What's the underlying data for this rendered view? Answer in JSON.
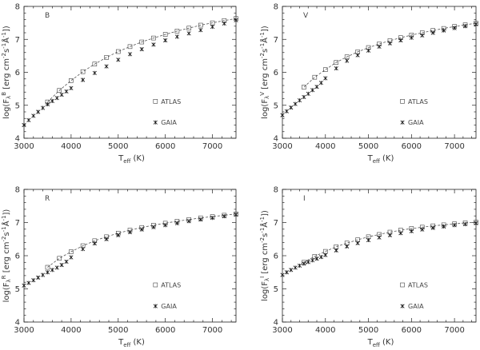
{
  "colors": {
    "axes": "#222222",
    "atlas_marker": "#444444",
    "gaia_marker": "#111111",
    "curve": "#555555"
  },
  "chart_data": [
    {
      "type": "scatter",
      "panel_label": "B",
      "ylabel": "log(F_λ^B [erg cm^-2s^-1Å^-1])",
      "ylabel_main": "log(F",
      "ylabel_sup": "B",
      "ylabel_rest": " [erg cm",
      "xlabel_main": "T",
      "xlabel_sub": "eff",
      "xlabel_unit": " (K)",
      "xlim": [
        3000,
        7500
      ],
      "ylim": [
        4,
        8
      ],
      "xticks": [
        "3000",
        "4000",
        "5000",
        "6000",
        "7000"
      ],
      "yticks": [
        "4",
        "5",
        "6",
        "7",
        "8"
      ],
      "legend": [
        "ATLAS",
        "GAIA"
      ],
      "series": [
        {
          "name": "ATLAS",
          "marker": "square",
          "x": [
            3500,
            3750,
            4000,
            4250,
            4500,
            4750,
            5000,
            5250,
            5500,
            5750,
            6000,
            6250,
            6500,
            6750,
            7000,
            7250,
            7500
          ],
          "y": [
            5.1,
            5.45,
            5.75,
            6.02,
            6.25,
            6.45,
            6.63,
            6.78,
            6.92,
            7.04,
            7.15,
            7.25,
            7.34,
            7.43,
            7.5,
            7.57,
            7.63
          ]
        },
        {
          "name": "GAIA",
          "marker": "cross",
          "x": [
            3000,
            3100,
            3200,
            3300,
            3400,
            3500,
            3600,
            3700,
            3800,
            3900,
            4000,
            4250,
            4500,
            4750,
            5000,
            5250,
            5500,
            5750,
            6000,
            6250,
            6500,
            6750,
            7000,
            7250,
            7500
          ],
          "y": [
            4.4,
            4.55,
            4.68,
            4.8,
            4.92,
            5.03,
            5.13,
            5.22,
            5.32,
            5.42,
            5.52,
            5.77,
            5.98,
            6.18,
            6.38,
            6.55,
            6.7,
            6.84,
            6.97,
            7.08,
            7.18,
            7.28,
            7.38,
            7.48,
            7.58
          ]
        }
      ]
    },
    {
      "type": "scatter",
      "panel_label": "V",
      "ylabel": "log(F_λ^V [erg cm^-2s^-1Å^-1])",
      "ylabel_main": "log(F",
      "ylabel_sup": "V",
      "ylabel_rest": " [erg cm",
      "xlabel_main": "T",
      "xlabel_sub": "eff",
      "xlabel_unit": " (K)",
      "xlim": [
        3000,
        7500
      ],
      "ylim": [
        4,
        8
      ],
      "xticks": [
        "3000",
        "4000",
        "5000",
        "6000",
        "7000"
      ],
      "yticks": [
        "4",
        "5",
        "6",
        "7",
        "8"
      ],
      "legend": [
        "ATLAS",
        "GAIA"
      ],
      "series": [
        {
          "name": "ATLAS",
          "marker": "square",
          "x": [
            3500,
            3750,
            4000,
            4250,
            4500,
            4750,
            5000,
            5250,
            5500,
            5750,
            6000,
            6250,
            6500,
            6750,
            7000,
            7250,
            7500
          ],
          "y": [
            5.55,
            5.85,
            6.08,
            6.3,
            6.47,
            6.62,
            6.75,
            6.86,
            6.96,
            7.05,
            7.13,
            7.2,
            7.27,
            7.33,
            7.39,
            7.44,
            7.49
          ]
        },
        {
          "name": "GAIA",
          "marker": "cross",
          "x": [
            3000,
            3100,
            3200,
            3300,
            3400,
            3500,
            3600,
            3700,
            3800,
            3900,
            4000,
            4250,
            4500,
            4750,
            5000,
            5250,
            5500,
            5750,
            6000,
            6250,
            6500,
            6750,
            7000,
            7250,
            7500
          ],
          "y": [
            4.7,
            4.82,
            4.93,
            5.04,
            5.15,
            5.25,
            5.35,
            5.46,
            5.56,
            5.68,
            5.82,
            6.12,
            6.35,
            6.52,
            6.66,
            6.78,
            6.88,
            6.97,
            7.05,
            7.12,
            7.2,
            7.27,
            7.34,
            7.4,
            7.46
          ]
        }
      ]
    },
    {
      "type": "scatter",
      "panel_label": "R",
      "ylabel": "log(F_λ^R [erg cm^-2s^-1Å^-1])",
      "ylabel_main": "log(F",
      "ylabel_sup": "R",
      "ylabel_rest": " [erg cm",
      "xlabel_main": "T",
      "xlabel_sub": "eff",
      "xlabel_unit": " (K)",
      "xlim": [
        3000,
        7500
      ],
      "ylim": [
        4,
        8
      ],
      "xticks": [
        "3000",
        "4000",
        "5000",
        "6000",
        "7000"
      ],
      "yticks": [
        "4",
        "5",
        "6",
        "7",
        "8"
      ],
      "legend": [
        "ATLAS",
        "GAIA"
      ],
      "series": [
        {
          "name": "ATLAS",
          "marker": "square",
          "x": [
            3500,
            3750,
            4000,
            4250,
            4500,
            4750,
            5000,
            5250,
            5500,
            5750,
            6000,
            6250,
            6500,
            6750,
            7000,
            7250,
            7500
          ],
          "y": [
            5.65,
            5.92,
            6.12,
            6.3,
            6.45,
            6.57,
            6.68,
            6.77,
            6.85,
            6.92,
            6.98,
            7.04,
            7.09,
            7.14,
            7.18,
            7.22,
            7.26
          ]
        },
        {
          "name": "GAIA",
          "marker": "cross",
          "x": [
            3000,
            3100,
            3200,
            3300,
            3400,
            3500,
            3600,
            3700,
            3800,
            3900,
            4000,
            4250,
            4500,
            4750,
            5000,
            5250,
            5500,
            5750,
            6000,
            6250,
            6500,
            6750,
            7000,
            7250,
            7500
          ],
          "y": [
            5.1,
            5.18,
            5.26,
            5.34,
            5.42,
            5.5,
            5.57,
            5.64,
            5.72,
            5.82,
            5.95,
            6.2,
            6.37,
            6.5,
            6.62,
            6.71,
            6.79,
            6.86,
            6.92,
            6.98,
            7.04,
            7.09,
            7.14,
            7.19,
            7.24
          ]
        }
      ]
    },
    {
      "type": "scatter",
      "panel_label": "I",
      "ylabel": "log(F_λ^I [erg cm^-2s^-1Å^-1])",
      "ylabel_main": "log(F",
      "ylabel_sup": "I",
      "ylabel_rest": " [erg cm",
      "xlabel_main": "T",
      "xlabel_sub": "eff",
      "xlabel_unit": " (K)",
      "xlim": [
        3000,
        7500
      ],
      "ylim": [
        4,
        8
      ],
      "xticks": [
        "3000",
        "4000",
        "5000",
        "6000",
        "7000"
      ],
      "yticks": [
        "4",
        "5",
        "6",
        "7",
        "8"
      ],
      "legend": [
        "ATLAS",
        "GAIA"
      ],
      "series": [
        {
          "name": "ATLAS",
          "marker": "square",
          "x": [
            3500,
            3750,
            4000,
            4250,
            4500,
            4750,
            5000,
            5250,
            5500,
            5750,
            6000,
            6250,
            6500,
            6750,
            7000,
            7250,
            7500
          ],
          "y": [
            5.8,
            5.98,
            6.13,
            6.27,
            6.38,
            6.48,
            6.57,
            6.64,
            6.71,
            6.77,
            6.82,
            6.86,
            6.9,
            6.93,
            6.96,
            6.99,
            7.01
          ]
        },
        {
          "name": "GAIA",
          "marker": "cross",
          "x": [
            3000,
            3100,
            3200,
            3300,
            3400,
            3500,
            3600,
            3700,
            3800,
            3900,
            4000,
            4250,
            4500,
            4750,
            5000,
            5250,
            5500,
            5750,
            6000,
            6250,
            6500,
            6750,
            7000,
            7250,
            7500
          ],
          "y": [
            5.42,
            5.5,
            5.57,
            5.64,
            5.7,
            5.76,
            5.81,
            5.86,
            5.91,
            5.96,
            6.02,
            6.16,
            6.28,
            6.38,
            6.47,
            6.55,
            6.62,
            6.68,
            6.74,
            6.79,
            6.84,
            6.88,
            6.92,
            6.95,
            6.98
          ]
        }
      ]
    }
  ]
}
